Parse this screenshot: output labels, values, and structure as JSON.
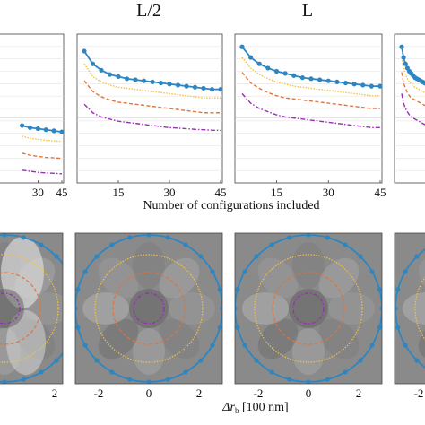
{
  "figure": {
    "column_titles": [
      "L/2",
      "L"
    ],
    "top_xlabel": "Number of configurations included",
    "bottom_xlabel": "Δr",
    "bottom_xlabel_sub": "b",
    "bottom_xlabel_unit": " [100 nm]",
    "colors": {
      "blue": "#2e86c1",
      "yellow": "#f5c242",
      "orange": "#e0743a",
      "purple": "#9b2fb5",
      "panel_bg": "#8a8a8a"
    }
  },
  "chart_data": [
    {
      "type": "line",
      "panel": "top-left-partial",
      "x_tick_labels": [
        "30",
        "45"
      ],
      "series": [
        {
          "color": "#2e86c1",
          "style": "solid-markers",
          "values": [
            0.47,
            0.46,
            0.455,
            0.45,
            0.445,
            0.44
          ]
        },
        {
          "color": "#f5c242",
          "style": "dotted",
          "values": [
            0.42,
            0.41,
            0.405,
            0.4,
            0.398,
            0.395
          ]
        },
        {
          "color": "#e0743a",
          "style": "dashed",
          "values": [
            0.34,
            0.33,
            0.325,
            0.32,
            0.318,
            0.315
          ]
        },
        {
          "color": "#9b2fb5",
          "style": "dashdot",
          "values": [
            0.26,
            0.255,
            0.25,
            0.247,
            0.245,
            0.243
          ]
        }
      ]
    },
    {
      "type": "line",
      "panel": "top-L/2",
      "x": [
        5,
        7.5,
        10,
        12.5,
        15,
        17.5,
        20,
        22.5,
        25,
        27.5,
        30,
        32.5,
        35,
        37.5,
        40,
        42.5,
        45
      ],
      "x_tick_labels": [
        "15",
        "30",
        "45"
      ],
      "series": [
        {
          "color": "#2e86c1",
          "style": "solid-markers",
          "values": [
            0.82,
            0.76,
            0.73,
            0.71,
            0.7,
            0.69,
            0.685,
            0.68,
            0.675,
            0.67,
            0.665,
            0.66,
            0.655,
            0.65,
            0.645,
            0.64,
            0.64
          ]
        },
        {
          "color": "#f5c242",
          "style": "dotted",
          "values": [
            0.76,
            0.7,
            0.675,
            0.66,
            0.65,
            0.645,
            0.64,
            0.635,
            0.63,
            0.625,
            0.62,
            0.615,
            0.61,
            0.605,
            0.6,
            0.6,
            0.6
          ]
        },
        {
          "color": "#e0743a",
          "style": "dashed",
          "values": [
            0.68,
            0.63,
            0.605,
            0.59,
            0.58,
            0.575,
            0.57,
            0.565,
            0.56,
            0.555,
            0.55,
            0.545,
            0.54,
            0.535,
            0.53,
            0.53,
            0.53
          ]
        },
        {
          "color": "#9b2fb5",
          "style": "dashdot",
          "values": [
            0.57,
            0.53,
            0.51,
            0.5,
            0.49,
            0.485,
            0.48,
            0.475,
            0.47,
            0.465,
            0.46,
            0.458,
            0.455,
            0.452,
            0.45,
            0.448,
            0.447
          ]
        }
      ]
    },
    {
      "type": "line",
      "panel": "top-L",
      "x": [
        5,
        7.5,
        10,
        12.5,
        15,
        17.5,
        20,
        22.5,
        25,
        27.5,
        30,
        32.5,
        35,
        37.5,
        40,
        42.5,
        45
      ],
      "x_tick_labels": [
        "15",
        "30",
        "45"
      ],
      "series": [
        {
          "color": "#2e86c1",
          "style": "solid-markers",
          "values": [
            0.84,
            0.79,
            0.76,
            0.74,
            0.725,
            0.715,
            0.705,
            0.695,
            0.69,
            0.685,
            0.68,
            0.675,
            0.67,
            0.665,
            0.66,
            0.655,
            0.655
          ]
        },
        {
          "color": "#f5c242",
          "style": "dotted",
          "values": [
            0.79,
            0.74,
            0.71,
            0.69,
            0.675,
            0.665,
            0.655,
            0.65,
            0.645,
            0.64,
            0.635,
            0.63,
            0.625,
            0.62,
            0.615,
            0.61,
            0.61
          ]
        },
        {
          "color": "#e0743a",
          "style": "dashed",
          "values": [
            0.72,
            0.67,
            0.645,
            0.625,
            0.61,
            0.6,
            0.595,
            0.59,
            0.585,
            0.58,
            0.575,
            0.57,
            0.565,
            0.56,
            0.555,
            0.55,
            0.55
          ]
        },
        {
          "color": "#9b2fb5",
          "style": "dashdot",
          "values": [
            0.62,
            0.575,
            0.55,
            0.535,
            0.52,
            0.51,
            0.505,
            0.5,
            0.495,
            0.49,
            0.485,
            0.48,
            0.475,
            0.47,
            0.465,
            0.46,
            0.46
          ]
        }
      ]
    },
    {
      "type": "heatmap",
      "panel": "bottom-row",
      "x_tick_labels_partial": [
        "2"
      ],
      "x_tick_labels": [
        "-2",
        "0",
        "2"
      ],
      "x_tick_labels_right_partial": [
        "-2"
      ],
      "contour_levels": [
        "blue",
        "yellow",
        "orange",
        "purple"
      ]
    }
  ]
}
